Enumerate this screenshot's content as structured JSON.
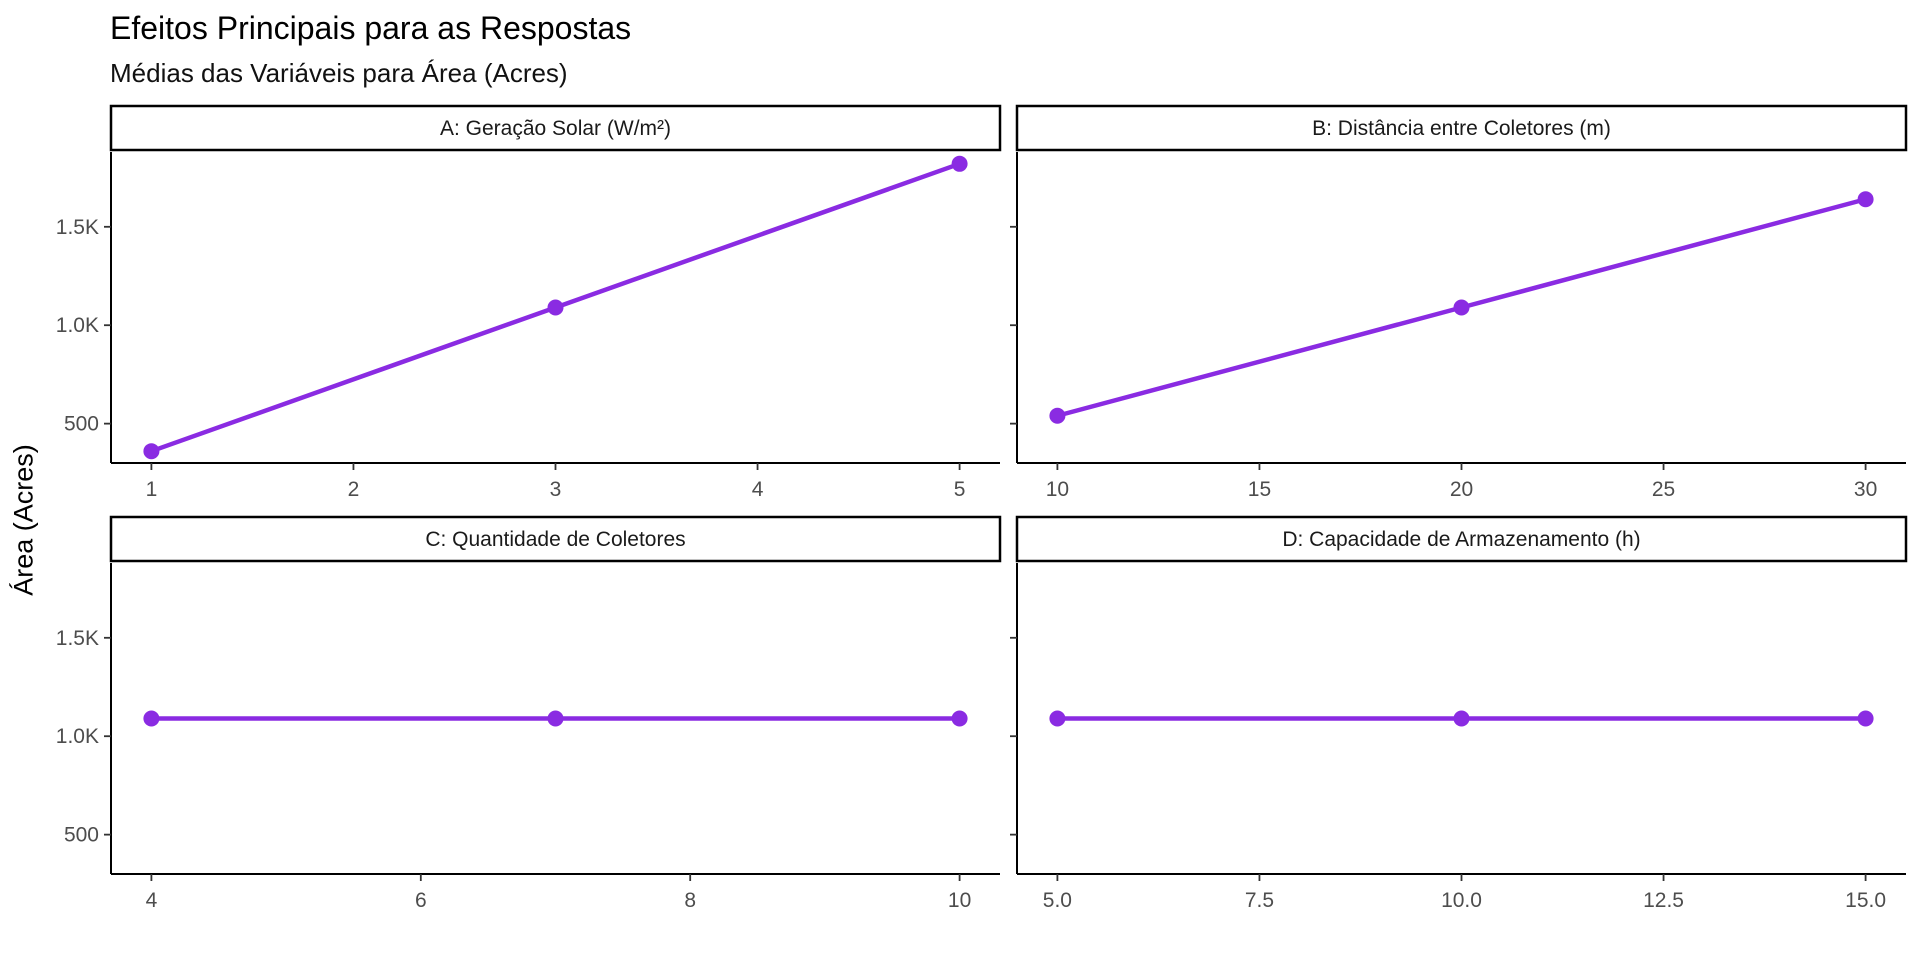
{
  "title": "Efeitos Principais para as Respostas",
  "subtitle": "Médias das Variáveis para Área (Acres)",
  "ylabel": "Área (Acres)",
  "colors": {
    "series": "#8A2BE2",
    "axis": "#000000",
    "tick_text": "#4d4d4d"
  },
  "chart_data": {
    "type": "line",
    "facet_layout": "2x2",
    "shared_y": true,
    "ylim": [
      300,
      1880
    ],
    "yticks": [
      500,
      1000,
      1500
    ],
    "ytick_labels": [
      "500",
      "1.0K",
      "1.5K"
    ],
    "ylabel": "Área (Acres)",
    "grid": false,
    "panels": [
      {
        "id": "A",
        "strip": "A: Geração Solar (W/m²)",
        "x": [
          1,
          3,
          5
        ],
        "y": [
          360,
          1090,
          1820
        ],
        "xlim": [
          0.8,
          5.2
        ],
        "xticks": [
          1,
          2,
          3,
          4,
          5
        ],
        "xtick_labels": [
          "1",
          "2",
          "3",
          "4",
          "5"
        ]
      },
      {
        "id": "B",
        "strip": "B: Distância entre Coletores (m)",
        "x": [
          10,
          20,
          30
        ],
        "y": [
          540,
          1090,
          1640
        ],
        "xlim": [
          9.0,
          31.0
        ],
        "xticks": [
          10,
          15,
          20,
          25,
          30
        ],
        "xtick_labels": [
          "10",
          "15",
          "20",
          "25",
          "30"
        ]
      },
      {
        "id": "C",
        "strip": "C: Quantidade de Coletores",
        "x": [
          4,
          7,
          10
        ],
        "y": [
          1090,
          1090,
          1090
        ],
        "xlim": [
          3.7,
          10.3
        ],
        "xticks": [
          4,
          6,
          8,
          10
        ],
        "xtick_labels": [
          "4",
          "6",
          "8",
          "10"
        ]
      },
      {
        "id": "D",
        "strip": "D: Capacidade de Armazenamento (h)",
        "x": [
          5,
          10,
          15
        ],
        "y": [
          1090,
          1090,
          1090
        ],
        "xlim": [
          4.5,
          15.5
        ],
        "xticks": [
          5,
          7.5,
          10,
          12.5,
          15
        ],
        "xtick_labels": [
          "5.0",
          "7.5",
          "10.0",
          "12.5",
          "15.0"
        ]
      }
    ]
  }
}
